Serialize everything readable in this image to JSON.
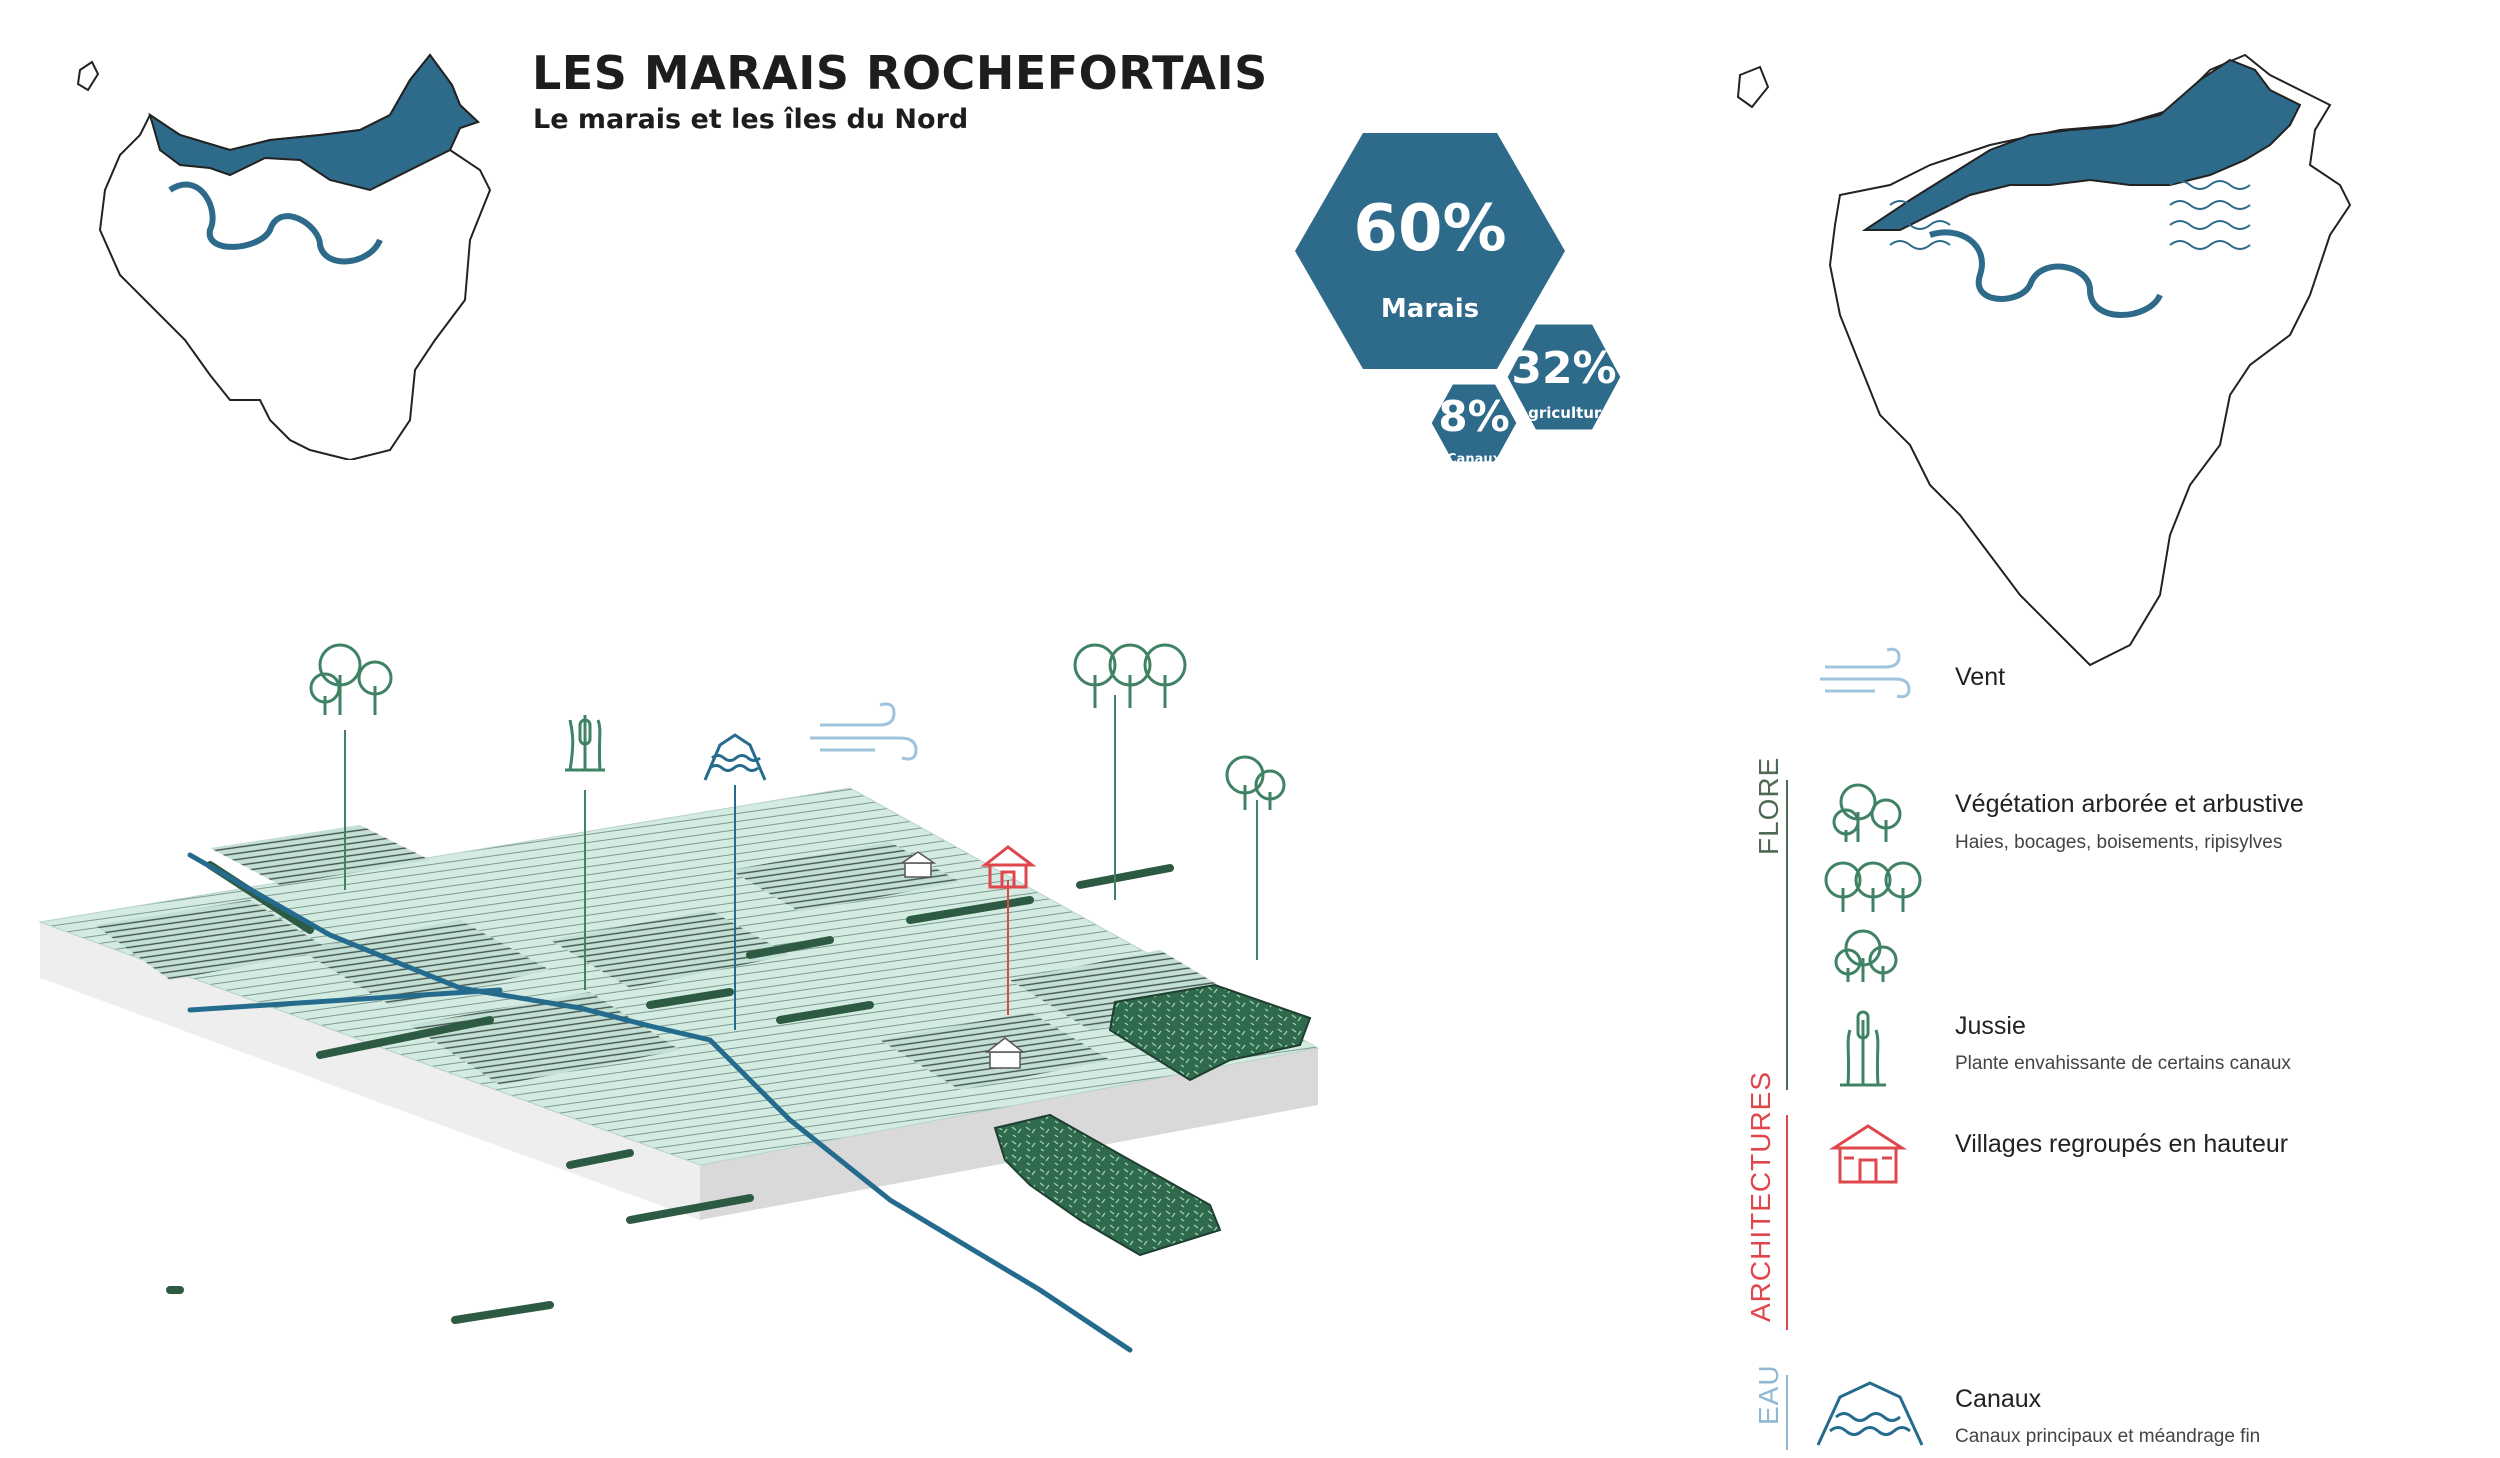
{
  "header": {
    "title": "LES MARAIS ROCHEFORTAIS",
    "subtitle": "Le marais et les îles du Nord"
  },
  "stats": [
    {
      "value": "60%",
      "label": "Marais"
    },
    {
      "value": "32%",
      "label": "Agriculture"
    },
    {
      "value": "8%",
      "label": "Canaux"
    }
  ],
  "legend": {
    "wind": {
      "title": "Vent"
    },
    "categories": [
      {
        "name": "FLORE",
        "color": "#4e6a55"
      },
      {
        "name": "ARCHITECTURES",
        "color": "#e0474c"
      },
      {
        "name": "EAU",
        "color": "#8fb8d4"
      }
    ],
    "items": [
      {
        "title": "Végétation arborée et arbustive",
        "subtitle": "Haies, bocages, boisements, ripisylves"
      },
      {
        "title": "Jussie",
        "subtitle": "Plante envahissante de certains canaux"
      },
      {
        "title": "Villages regroupés en hauteur",
        "subtitle": ""
      },
      {
        "title": "Canaux",
        "subtitle": "Canaux principaux et méandrage fin"
      }
    ]
  },
  "colors": {
    "marsh_blue": "#2e6a8a",
    "canal_blue": "#256b8e",
    "vegetation_green": "#3f8264",
    "dark_green": "#2f5a44",
    "field_green": "#cfe8dd",
    "village_red": "#e0474c",
    "wind_blue": "#9fc4dd"
  }
}
